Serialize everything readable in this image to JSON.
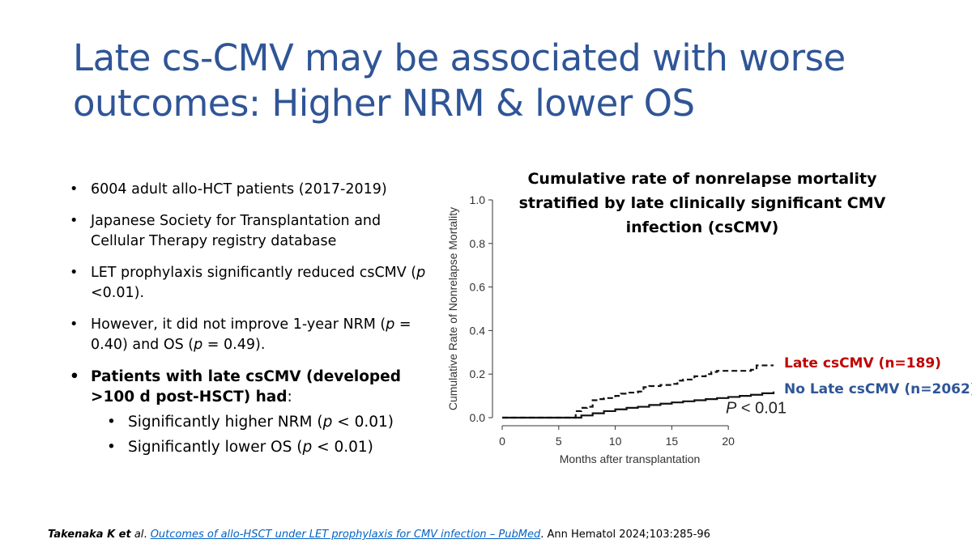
{
  "slide": {
    "title_line1": "Late cs-CMV may be associated with worse",
    "title_line2": "outcomes: Higher NRM & lower OS"
  },
  "bullets": [
    "6004 adult allo-HCT patients (2017-2019)",
    "Japanese Society for Transplantation and Cellular Therapy registry database",
    [
      "LET prophylaxis significantly reduced csCMV (",
      "p",
      " <0.01)."
    ],
    [
      "However, it did not improve 1-year NRM (",
      "p",
      " = 0.40) and OS (",
      "p",
      " = 0.49)."
    ]
  ],
  "key_finding": {
    "bold": "Patients with late csCMV (developed >100 d post-HSCT) had",
    "tail": ":",
    "sub": [
      [
        "Significantly higher NRM (",
        "p",
        " < 0.01)"
      ],
      [
        "Significantly lower OS (",
        "p",
        " < 0.01)"
      ]
    ]
  },
  "chart_data": {
    "type": "line",
    "title_lines": [
      "Cumulative rate of nonrelapse mortality",
      "stratified by late clinically significant CMV",
      "infection (csCMV)"
    ],
    "xlabel": "Months after transplantation",
    "ylabel": "Cumulative Rate of Nonrelapse Mortality",
    "xlim": [
      0,
      24
    ],
    "ylim": [
      0,
      1.0
    ],
    "xticks": [
      0,
      5,
      10,
      15,
      20
    ],
    "yticks": [
      0.0,
      0.2,
      0.4,
      0.6,
      0.8,
      1.0
    ],
    "annotation": "P < 0.01",
    "series": [
      {
        "name": "Late csCMV (n=189)",
        "style": "dashed",
        "legend_color": "#c00000",
        "x": [
          0,
          6,
          6.5,
          7,
          7.5,
          8,
          8.5,
          9,
          10,
          10.5,
          11,
          12,
          12.5,
          13,
          14,
          15,
          15.5,
          16,
          17,
          18,
          18.5,
          19,
          20,
          21,
          22,
          22.5,
          24
        ],
        "y": [
          0,
          0,
          0.03,
          0.045,
          0.05,
          0.08,
          0.085,
          0.09,
          0.1,
          0.11,
          0.115,
          0.12,
          0.14,
          0.145,
          0.15,
          0.155,
          0.17,
          0.175,
          0.19,
          0.2,
          0.21,
          0.215,
          0.215,
          0.215,
          0.22,
          0.24,
          0.24
        ]
      },
      {
        "name": "No Late csCMV (n=2062)",
        "style": "solid",
        "legend_color": "#2f5597",
        "x": [
          0,
          6,
          7,
          8,
          9,
          10,
          11,
          12,
          13,
          14,
          15,
          16,
          17,
          18,
          19,
          20,
          21,
          22,
          23,
          24
        ],
        "y": [
          0,
          0,
          0.01,
          0.02,
          0.03,
          0.038,
          0.045,
          0.05,
          0.058,
          0.064,
          0.07,
          0.075,
          0.08,
          0.085,
          0.09,
          0.095,
          0.1,
          0.105,
          0.112,
          0.12
        ]
      }
    ]
  },
  "footer": {
    "authors": "Takenaka K et",
    "etal": " al",
    "sep": ". ",
    "link_text": "Outcomes of allo-HSCT under LET prophylaxis for CMV infection – PubMed",
    "journal": ". Ann Hematol 2024;103:285-96"
  }
}
